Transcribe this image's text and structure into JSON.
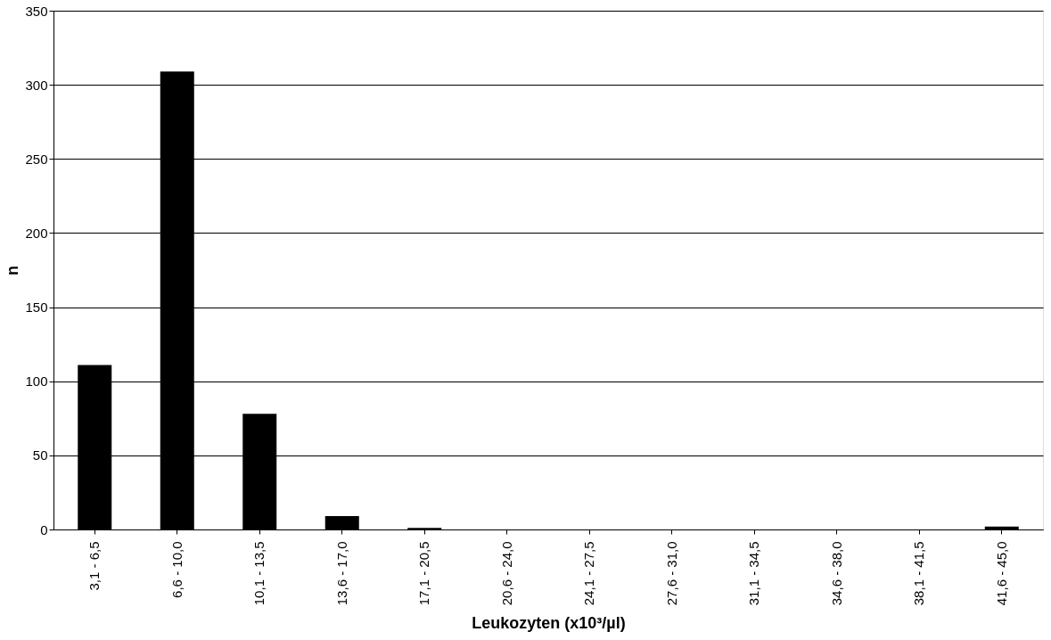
{
  "chart_data": {
    "type": "bar",
    "xlabel": "Leukozyten (x10³/µl)",
    "ylabel": "n",
    "categories": [
      "3,1 - 6,5",
      "6,6 - 10,0",
      "10,1 - 13,5",
      "13,6 - 17,0",
      "17,1 - 20,5",
      "20,6 - 24,0",
      "24,1 - 27,5",
      "27,6 - 31,0",
      "31,1 - 34,5",
      "34,6 - 38,0",
      "38,1 - 41,5",
      "41,6 - 45,0"
    ],
    "values": [
      111,
      309,
      78,
      9,
      1,
      0,
      0,
      0,
      0,
      0,
      0,
      2
    ],
    "color": "#000000",
    "ylim": [
      0,
      350
    ],
    "yticks": [
      0,
      50,
      100,
      150,
      200,
      250,
      300,
      350
    ],
    "grid": "y"
  }
}
